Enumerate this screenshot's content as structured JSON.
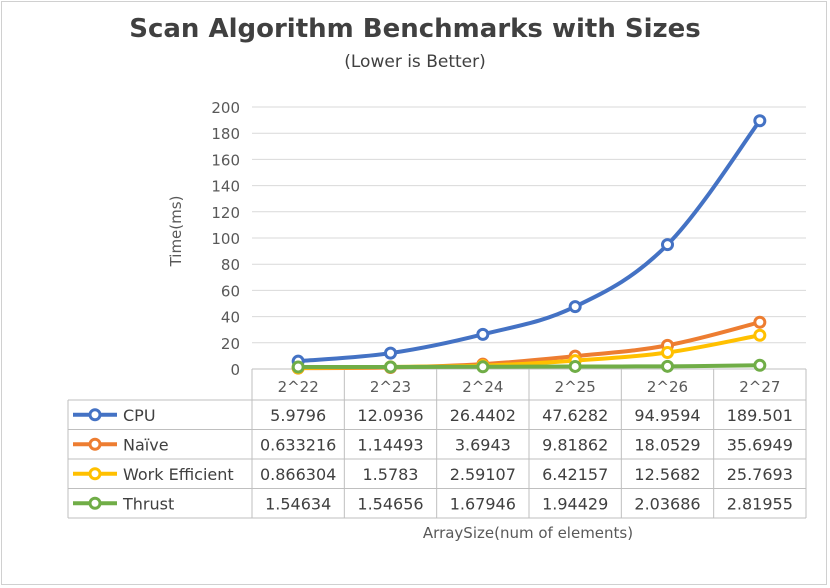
{
  "chart_data": {
    "type": "line",
    "title": "Scan Algorithm Benchmarks with Sizes",
    "subtitle": "(Lower is Better)",
    "ylabel": "Time(ms)",
    "xlabel": "ArraySize(num of elements)",
    "ylim": [
      0,
      200
    ],
    "yticks": [
      0,
      20,
      40,
      60,
      80,
      100,
      120,
      140,
      160,
      180,
      200
    ],
    "grid": true,
    "legend": "data-table",
    "categories": [
      "2^22",
      "2^23",
      "2^24",
      "2^25",
      "2^26",
      "2^27"
    ],
    "series": [
      {
        "name": "CPU",
        "color": "#4472C4",
        "values": [
          5.9796,
          12.0936,
          26.4402,
          47.6282,
          94.9594,
          189.501
        ],
        "labels": [
          "5.9796",
          "12.0936",
          "26.4402",
          "47.6282",
          "94.9594",
          "189.501"
        ]
      },
      {
        "name": "Naïve",
        "color": "#ED7D31",
        "values": [
          0.633216,
          1.14493,
          3.6943,
          9.81862,
          18.0529,
          35.6949
        ],
        "labels": [
          "0.633216",
          "1.14493",
          "3.6943",
          "9.81862",
          "18.0529",
          "35.6949"
        ]
      },
      {
        "name": "Work Efficient",
        "color": "#FFC000",
        "values": [
          0.866304,
          1.5783,
          2.59107,
          6.42157,
          12.5682,
          25.7693
        ],
        "labels": [
          "0.866304",
          "1.5783",
          "2.59107",
          "6.42157",
          "12.5682",
          "25.7693"
        ]
      },
      {
        "name": "Thrust",
        "color": "#70AD47",
        "values": [
          1.54634,
          1.54656,
          1.67946,
          1.94429,
          2.03686,
          2.81955
        ],
        "labels": [
          "1.54634",
          "1.54656",
          "1.67946",
          "1.94429",
          "2.03686",
          "2.81955"
        ]
      }
    ]
  }
}
